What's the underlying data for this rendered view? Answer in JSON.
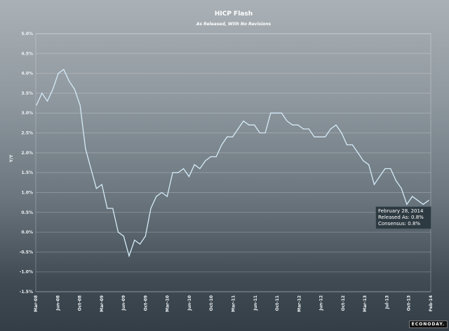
{
  "chart_data": {
    "type": "line",
    "title": "HICP Flash",
    "subtitle": "As Released, With No Revisions",
    "xlabel": "",
    "ylabel": "Y/Y",
    "ylim": [
      -1.5,
      5.0
    ],
    "yticks": [
      "5.0%",
      "4.5%",
      "4.0%",
      "3.5%",
      "3.0%",
      "2.5%",
      "2.0%",
      "1.5%",
      "1.0%",
      "0.5%",
      "0.0%",
      "-0.5%",
      "-1.0%",
      "-1.5%"
    ],
    "xticks": [
      "Mar-08",
      "Jun-08",
      "Oct-08",
      "Mar-09",
      "Jun-09",
      "Oct-09",
      "Mar-10",
      "Jun-10",
      "Oct-10",
      "Mar-11",
      "Jun-11",
      "Oct-11",
      "Mar-12",
      "Jun-12",
      "Oct-12",
      "Mar-13",
      "Jul-13",
      "Oct-13",
      "Feb-14"
    ],
    "grid": true,
    "series": [
      {
        "name": "Released As",
        "color": "#d4ebf8",
        "values": [
          3.2,
          3.5,
          3.3,
          3.6,
          4.0,
          4.1,
          3.8,
          3.6,
          3.2,
          2.1,
          1.6,
          1.1,
          1.2,
          0.6,
          0.6,
          0.0,
          -0.1,
          -0.6,
          -0.2,
          -0.3,
          -0.1,
          0.6,
          0.9,
          1.0,
          0.9,
          1.5,
          1.5,
          1.6,
          1.4,
          1.7,
          1.6,
          1.8,
          1.9,
          1.9,
          2.2,
          2.4,
          2.4,
          2.6,
          2.8,
          2.7,
          2.7,
          2.5,
          2.5,
          3.0,
          3.0,
          3.0,
          2.8,
          2.7,
          2.7,
          2.6,
          2.6,
          2.4,
          2.4,
          2.4,
          2.6,
          2.7,
          2.5,
          2.2,
          2.2,
          2.0,
          1.8,
          1.7,
          1.2,
          1.4,
          1.6,
          1.6,
          1.3,
          1.1,
          0.7,
          0.9,
          0.8,
          0.7,
          0.8
        ]
      }
    ]
  },
  "tooltip": {
    "date": "February 28, 2014",
    "released": "Released As: 0.8%",
    "consensus": "Consensus: 0.8%"
  },
  "logo": "ECONODAY."
}
